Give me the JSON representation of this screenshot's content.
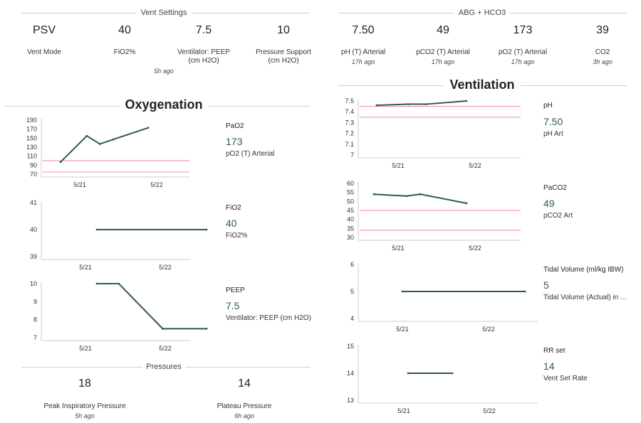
{
  "vent_settings": {
    "title": "Vent Settings",
    "items": [
      {
        "value": "PSV",
        "label1": "Vent Mode",
        "label2": ""
      },
      {
        "value": "40",
        "label1": "FiO2%",
        "label2": ""
      },
      {
        "value": "7.5",
        "label1": "Ventilator: PEEP",
        "label2": "(cm H2O)"
      },
      {
        "value": "10",
        "label1": "Pressure Support",
        "label2": "(cm H2O)"
      }
    ],
    "ago": "5h ago"
  },
  "abg": {
    "title": "ABG + HCO3",
    "items": [
      {
        "value": "7.50",
        "label": "pH (T) Arterial",
        "ago": "17h ago"
      },
      {
        "value": "49",
        "label": "pCO2 (T) Arterial",
        "ago": "17h ago"
      },
      {
        "value": "173",
        "label": "pO2 (T) Arterial",
        "ago": "17h ago"
      },
      {
        "value": "39",
        "label": "CO2",
        "ago": "3h ago"
      }
    ]
  },
  "oxygenation": {
    "title": "Oxygenation",
    "panels": [
      {
        "title": "PaO2",
        "value": "173",
        "sub": "pO2 (T) Arterial"
      },
      {
        "title": "FiO2",
        "value": "40",
        "sub": "FiO2%"
      },
      {
        "title": "PEEP",
        "value": "7.5",
        "sub": "Ventilator: PEEP (cm H2O)"
      }
    ]
  },
  "ventilation": {
    "title": "Ventilation",
    "panels": [
      {
        "title": "pH",
        "value": "7.50",
        "sub": "pH Art"
      },
      {
        "title": "PaCO2",
        "value": "49",
        "sub": "pCO2 Art"
      },
      {
        "title": "Tidal Volume (ml/kg IBW)",
        "value": "5",
        "sub": "Tidal Volume (Actual) in ..."
      },
      {
        "title": "RR set",
        "value": "14",
        "sub": "Vent Set Rate"
      }
    ]
  },
  "pressures": {
    "title": "Pressures",
    "items": [
      {
        "value": "18",
        "label": "Peak Inspiratory Pressure",
        "ago": "5h ago"
      },
      {
        "value": "14",
        "label": "Plateau Pressure",
        "ago": "6h ago"
      }
    ]
  },
  "colors": {
    "line": "#2e5a4f",
    "ref": "#f4a0a8",
    "axis": "#cccccc"
  },
  "chart_data": [
    {
      "id": "pao2",
      "type": "line",
      "ylim": [
        70,
        190
      ],
      "yticks": [
        70,
        90,
        110,
        130,
        150,
        170,
        190
      ],
      "xlabels": [
        "5/21",
        "5/22"
      ],
      "refs": [
        100,
        75
      ],
      "series": [
        {
          "points": [
            [
              0.0,
              97
            ],
            [
              0.3,
              155
            ],
            [
              0.45,
              137
            ],
            [
              0.6,
              147
            ],
            [
              1.0,
              173
            ]
          ]
        }
      ]
    },
    {
      "id": "fio2",
      "type": "line",
      "ylim": [
        39,
        41
      ],
      "yticks": [
        39,
        40,
        41
      ],
      "xlabels": [
        "5/21",
        "5/22"
      ],
      "refs": [],
      "series": [
        {
          "points": [
            [
              0.0,
              40
            ],
            [
              1.0,
              40
            ]
          ]
        }
      ]
    },
    {
      "id": "peep",
      "type": "line",
      "ylim": [
        7,
        10
      ],
      "yticks": [
        7,
        8,
        9,
        10
      ],
      "xlabels": [
        "5/21",
        "5/22"
      ],
      "refs": [],
      "series": [
        {
          "points": [
            [
              0.0,
              10
            ],
            [
              0.2,
              10
            ],
            [
              0.6,
              7.5
            ],
            [
              1.0,
              7.5
            ]
          ]
        }
      ]
    },
    {
      "id": "ph",
      "type": "line",
      "ylim": [
        7.0,
        7.5
      ],
      "yticks": [
        7,
        7.1,
        7.2,
        7.3,
        7.4,
        7.5
      ],
      "xlabels": [
        "5/21",
        "5/22"
      ],
      "refs": [
        7.45,
        7.35
      ],
      "series": [
        {
          "points": [
            [
              0.0,
              7.46
            ],
            [
              0.35,
              7.47
            ],
            [
              0.55,
              7.47
            ],
            [
              1.0,
              7.5
            ]
          ]
        }
      ]
    },
    {
      "id": "paco2",
      "type": "line",
      "ylim": [
        30,
        60
      ],
      "yticks": [
        30,
        35,
        40,
        45,
        50,
        55,
        60
      ],
      "xlabels": [
        "5/21",
        "5/22"
      ],
      "refs": [
        45,
        34
      ],
      "series": [
        {
          "points": [
            [
              0.0,
              54
            ],
            [
              0.35,
              53
            ],
            [
              0.5,
              54
            ],
            [
              1.0,
              49
            ]
          ]
        }
      ]
    },
    {
      "id": "tidal",
      "type": "line",
      "ylim": [
        4,
        6
      ],
      "yticks": [
        4,
        5,
        6
      ],
      "xlabels": [
        "5/21",
        "5/22"
      ],
      "refs": [],
      "series": [
        {
          "points": [
            [
              0.0,
              5
            ],
            [
              1.0,
              5
            ]
          ]
        }
      ]
    },
    {
      "id": "rr",
      "type": "line",
      "ylim": [
        13,
        15
      ],
      "yticks": [
        13,
        14,
        15
      ],
      "xlabels": [
        "5/21",
        "5/22"
      ],
      "refs": [],
      "series": [
        {
          "points": [
            [
              0.0,
              14
            ],
            [
              1.0,
              14
            ]
          ]
        }
      ]
    }
  ]
}
